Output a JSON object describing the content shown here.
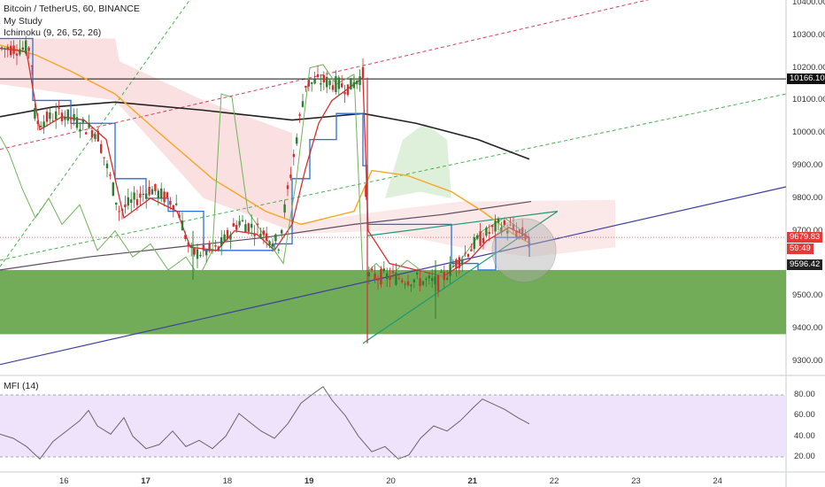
{
  "header": {
    "symbol_line": "Bitcoin / TetherUS, 60, BINANCE",
    "study1": "My Study",
    "study2": "Ichimoku (9, 26, 52, 26)"
  },
  "mfi": {
    "label": "MFI (14)"
  },
  "colors": {
    "bull": "#2e7d32",
    "bear": "#d32f2f",
    "green_zone": "#6aa84f",
    "mfi_band": "#efe3fb",
    "orange": "#f5a623",
    "black_ma": "#222222",
    "purple": "#3f3f9f",
    "teal": "#1b9a78",
    "red_dash": "#d0415a",
    "green_dash": "#4caf50"
  },
  "price_axis": {
    "ticks": [
      "10400.00",
      "10300.00",
      "10200.00",
      "10100.00",
      "10000.00",
      "9900.00",
      "9800.00",
      "9700.00",
      "9600.00",
      "9500.00",
      "9400.00",
      "9300.00"
    ],
    "tags": [
      {
        "text": "10166.10",
        "bg": "#111111",
        "fg": "#ffffff"
      },
      {
        "text": "9679.83",
        "bg": "#e53935",
        "fg": "#ffffff"
      },
      {
        "text": "59:49",
        "bg": "#e53935",
        "fg": "#ffffff"
      },
      {
        "text": "9596.42",
        "bg": "#222222",
        "fg": "#ffffff"
      }
    ]
  },
  "mfi_axis": {
    "ticks": [
      "80.00",
      "60.00",
      "40.00",
      "20.00"
    ]
  },
  "time_axis": {
    "ticks": [
      "16",
      "17",
      "18",
      "19",
      "20",
      "21",
      "22",
      "23",
      "24"
    ],
    "bold": [
      "17",
      "19",
      "21"
    ]
  }
}
